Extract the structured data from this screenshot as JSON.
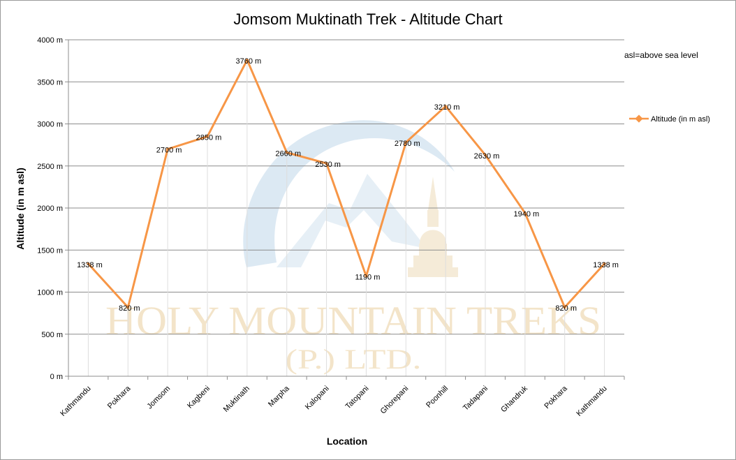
{
  "chart_data": {
    "type": "line",
    "title": "Jomsom Muktinath Trek - Altitude Chart",
    "xlabel": "Location",
    "ylabel": "Altitude (in m asl)",
    "ylim": [
      0,
      4000
    ],
    "yticks": [
      0,
      500,
      1000,
      1500,
      2000,
      2500,
      3000,
      3500,
      4000
    ],
    "ytick_suffix": " m",
    "grid": true,
    "legend_placement": "right",
    "note": "asl=above sea level",
    "categories": [
      "Kathmandu",
      "Pokhara",
      "Jomsom",
      "Kagbeni",
      "Muktinath",
      "Marpha",
      "Kalopani",
      "Tatopani",
      "Ghorepani",
      "Poonhill",
      "Tadapani",
      "Ghandruk",
      "Pokhara",
      "Kathmandu"
    ],
    "series": [
      {
        "name": "Altitude (in  m asl)",
        "color": "#f79646",
        "values": [
          1338,
          820,
          2700,
          2850,
          3760,
          2660,
          2530,
          1190,
          2780,
          3210,
          2630,
          1940,
          820,
          1338
        ],
        "labels": [
          "1338 m",
          "820 m",
          "2700 m",
          "2850 m",
          "3760 m",
          "2660 m",
          "2530 m",
          "1190 m",
          "2780 m",
          "3210 m",
          "2630 m",
          "1940 m",
          "820 m",
          "1338 m"
        ]
      }
    ]
  },
  "watermark": {
    "line1": "HOLY MOUNTAIN TREKS",
    "line2": "(P.) LTD.",
    "color": "#f3e4c9",
    "logo_color": "#dce9f3"
  }
}
